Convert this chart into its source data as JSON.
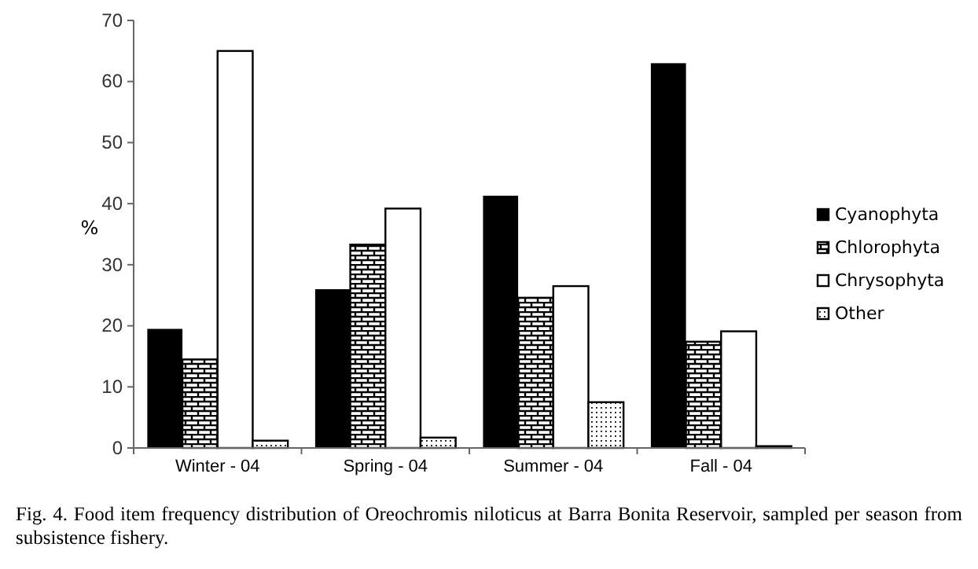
{
  "chart_data": {
    "type": "bar",
    "ylabel": "%",
    "categories": [
      "Winter - 04",
      "Spring - 04",
      "Summer - 04",
      "Fall - 04"
    ],
    "series": [
      {
        "name": "Cyanophyta",
        "color": "#000000",
        "values": [
          19.5,
          26,
          41.3,
          63
        ]
      },
      {
        "name": "Chlorophyta",
        "color": "#000000",
        "values": [
          14.5,
          33.3,
          24.6,
          17.4
        ]
      },
      {
        "name": "Chrysophyta",
        "color": "#ffffff",
        "values": [
          65,
          39.2,
          26.5,
          19.1
        ]
      },
      {
        "name": "Other",
        "color": "#000000",
        "values": [
          1.2,
          1.7,
          7.5,
          0.3
        ]
      }
    ],
    "ylim": [
      0,
      70
    ],
    "yticks": [
      0,
      10,
      20,
      30,
      40,
      50,
      60,
      70
    ],
    "grid": false,
    "legend": "right",
    "annotations": [
      "Fig. 4. Food item frequency distribution of Oreochromis niloticus at Barra Bonita Reservoir, sampled per season from subsistence fishery."
    ]
  }
}
